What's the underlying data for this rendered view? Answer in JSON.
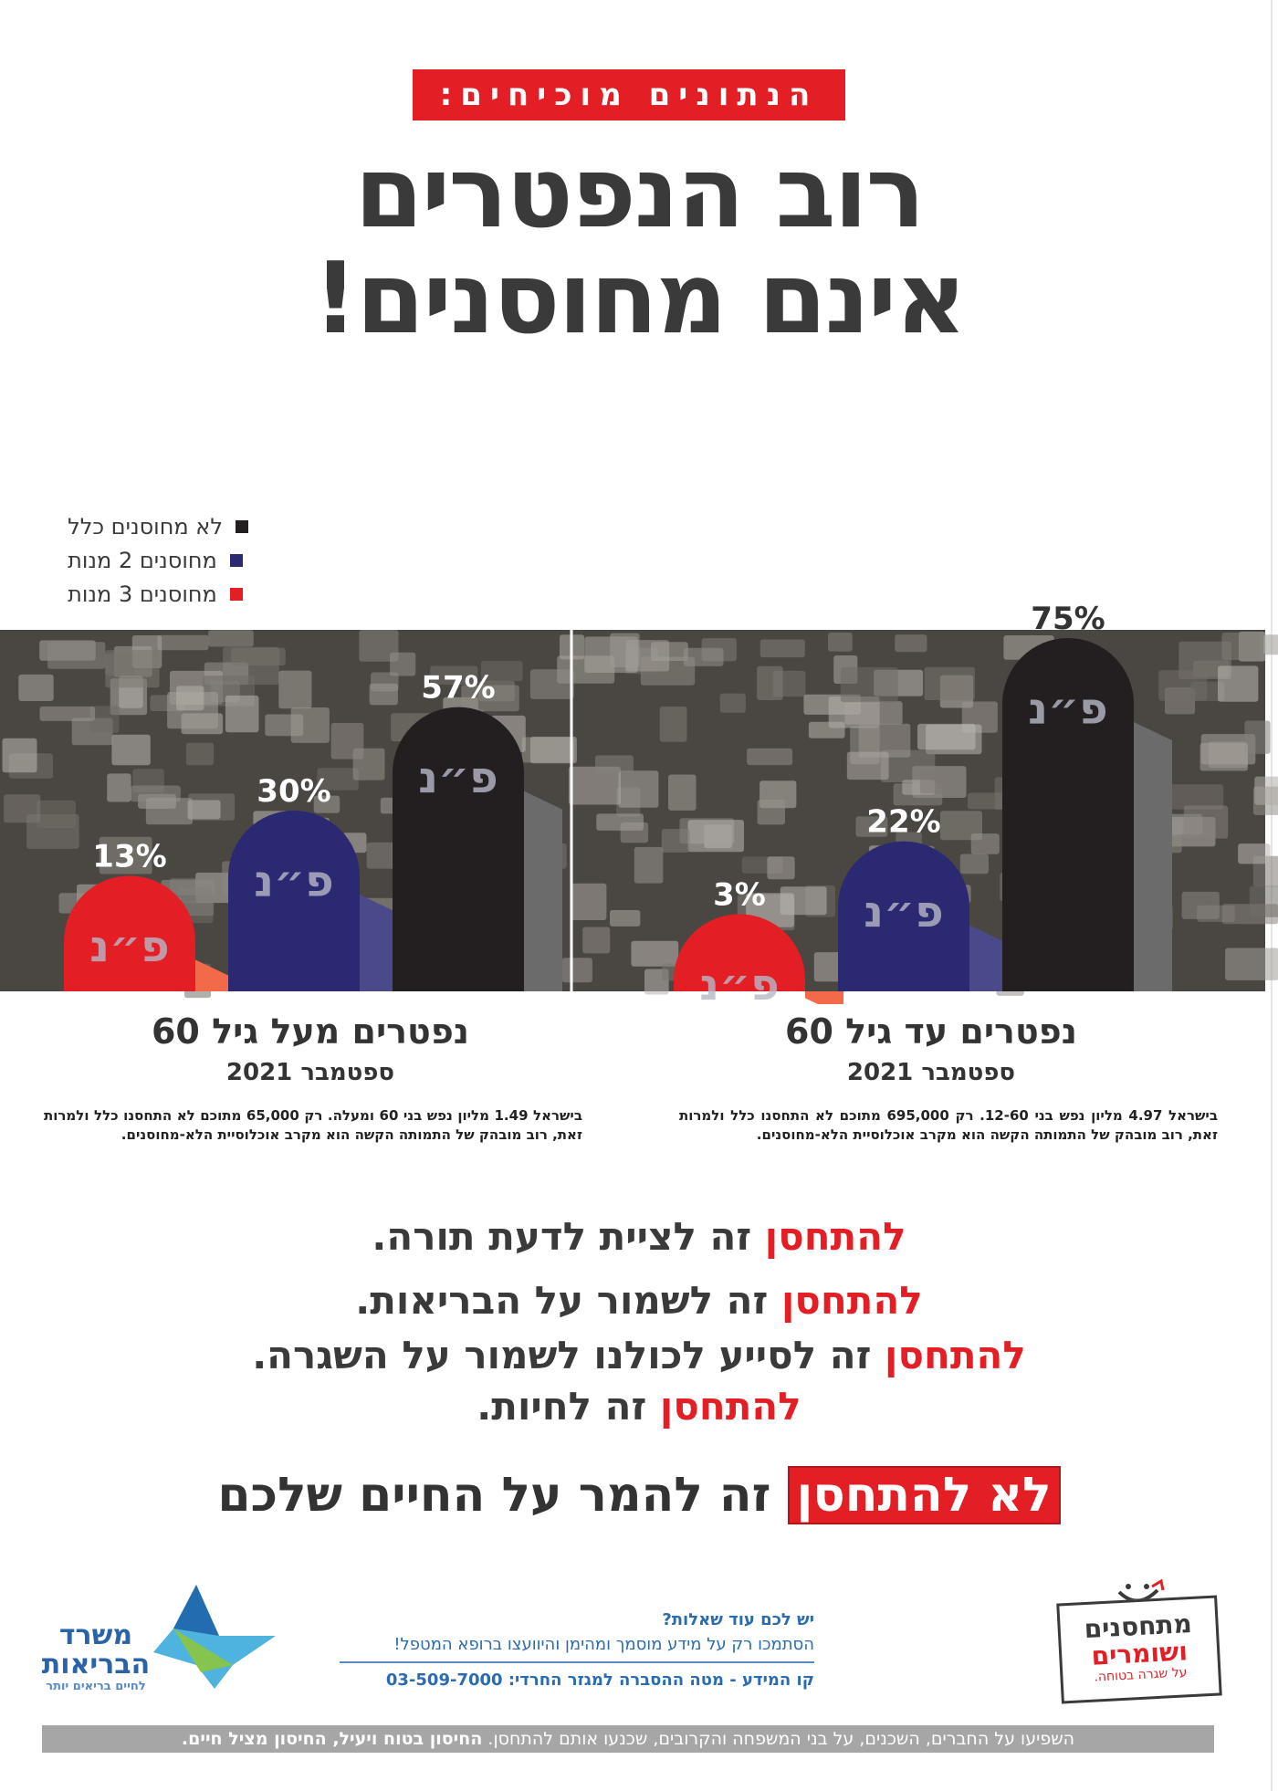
{
  "kicker": "הנתונים מוכיחים:",
  "title_line1": "רוב הנפטרים",
  "title_line2": "אינם מחוסנים!",
  "colors": {
    "red": "#e31e24",
    "navy": "#2b2972",
    "black": "#231f20",
    "grey": "#3a3a3a",
    "blue_text": "#2b6cb0"
  },
  "legend": [
    {
      "label": "לא מחוסנים כלל",
      "color": "#231f20"
    },
    {
      "label": "מחוסנים 2 מנות",
      "color": "#2b2972"
    },
    {
      "label": "מחוסנים 3 מנות",
      "color": "#e31e24"
    }
  ],
  "bar_mark": "פ״נ",
  "chart_data": [
    {
      "type": "bar",
      "title": "נפטרים מעל גיל 60",
      "subtitle": "ספטמבר 2021",
      "categories": [
        "מחוסנים 3 מנות",
        "מחוסנים 2 מנות",
        "לא מחוסנים כלל"
      ],
      "values": [
        13,
        30,
        57
      ],
      "labels": [
        "13%",
        "30%",
        "57%"
      ],
      "unit": "%",
      "note": "בישראל 1.49 מליון נפש בני 60 ומעלה. רק 65,000 מתוכם לא התחסנו כלל ולמרות זאת, רוב מובהק של התמותה הקשה הוא מקרב אוכלוסיית הלא-מחוסנים."
    },
    {
      "type": "bar",
      "title": "נפטרים עד גיל 60",
      "subtitle": "ספטמבר 2021",
      "categories": [
        "מחוסנים 3 מנות",
        "מחוסנים 2 מנות",
        "לא מחוסנים כלל"
      ],
      "values": [
        3,
        22,
        75
      ],
      "labels": [
        "3%",
        "22%",
        "75%"
      ],
      "unit": "%",
      "note": "בישראל 4.97 מליון נפש בני 12-60. רק 695,000 מתוכם לא התחסנו כלל ולמרות זאת, רוב מובהק של התמותה הקשה הוא מקרב אוכלוסיית הלא-מחוסנים."
    }
  ],
  "slogans": [
    {
      "hl": "להתחסן",
      "rest": " זה לציית לדעת תורה."
    },
    {
      "hl": "להתחסן",
      "rest": " זה לשמור על הבריאות."
    },
    {
      "hl": "להתחסן",
      "rest": " זה לסייע לכולנו לשמור על השגרה."
    },
    {
      "hl": "להתחסן",
      "rest": " זה לחיות."
    }
  ],
  "closing": {
    "hl": "לא להתחסן",
    "rest": " זה להמר על החיים שלכם"
  },
  "footer": {
    "moh_name_1": "משרד",
    "moh_name_2": "הבריאות",
    "moh_tagline": "לחיים בריאים יותר",
    "info_question": "יש לכם עוד שאלות?",
    "info_text": "הסתמכו רק על מידע מוסמך ומהימן והיוועצו ברופא המטפל!",
    "info_phone": "קו המידע - מטה ההסברה למגזר החרדי: 03-509-7000",
    "vax_line1": "מתחסנים",
    "vax_line2": "ושומרים",
    "vax_line3": "על שגרה בטוחה.",
    "bottom_plain": "השפיעו על החברים, השכנים, על בני המשפחה והקרובים, שכנעו אותם להתחסן. ",
    "bottom_bold": "החיסון בטוח ויעיל, החיסון מציל חיים."
  }
}
